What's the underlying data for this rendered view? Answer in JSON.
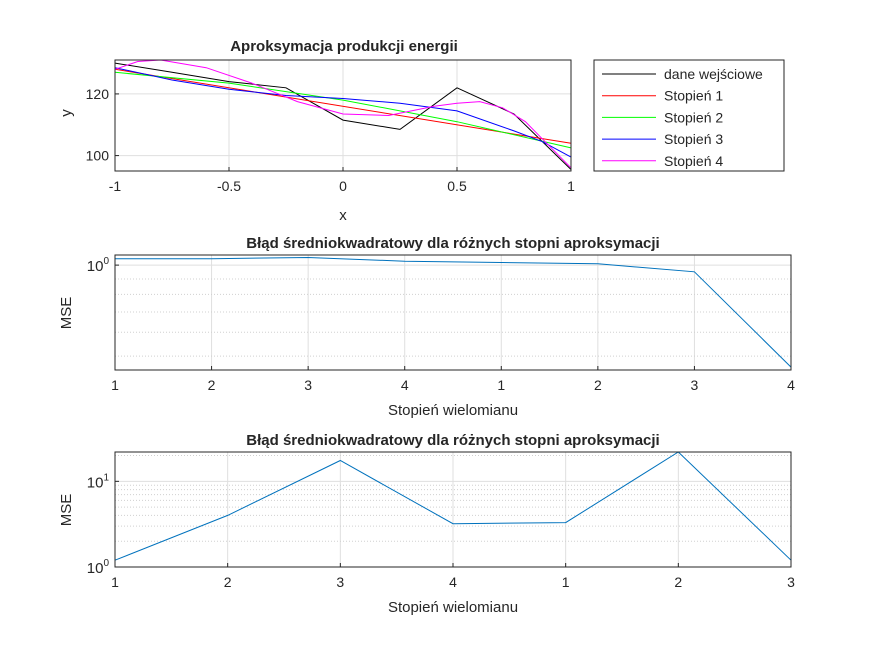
{
  "figure": {
    "background": "#ffffff"
  },
  "chart_data": [
    {
      "type": "line",
      "title": "Aproksymacja produkcji energii",
      "xlabel": "x",
      "ylabel": "y",
      "xlim": [
        -1,
        1
      ],
      "ylim": [
        95,
        131
      ],
      "xticks": [
        "-1",
        "-0.5",
        "0",
        "0.5",
        "1"
      ],
      "xtick_values": [
        -1,
        -0.5,
        0,
        0.5,
        1
      ],
      "yticks": [
        "100",
        "120"
      ],
      "ytick_values": [
        100,
        120
      ],
      "grid": true,
      "legend_position": "outside-right",
      "series": [
        {
          "name": "dane wejściowe",
          "color": "#000000",
          "x": [
            -1,
            -0.75,
            -0.5,
            -0.25,
            0,
            0.25,
            0.5,
            0.75,
            1
          ],
          "y": [
            130,
            127,
            124,
            122,
            111.5,
            108.5,
            122,
            113.5,
            95.5
          ]
        },
        {
          "name": "Stopień 1",
          "color": "#ff0000",
          "x": [
            -1,
            1
          ],
          "y": [
            128,
            104
          ]
        },
        {
          "name": "Stopień 2",
          "color": "#00ff00",
          "x": [
            -1,
            -0.5,
            0,
            0.5,
            1
          ],
          "y": [
            127,
            123.5,
            118,
            111,
            102.5
          ]
        },
        {
          "name": "Stopień 3",
          "color": "#0000ff",
          "x": [
            -1,
            -0.75,
            -0.5,
            -0.25,
            0,
            0.25,
            0.5,
            0.75,
            0.875,
            1
          ],
          "y": [
            128.5,
            124.5,
            121.5,
            119.5,
            118.5,
            117,
            114.5,
            108,
            104.5,
            99.5
          ]
        },
        {
          "name": "Stopień 4",
          "color": "#ff00ff",
          "x": [
            -1,
            -0.9,
            -0.8,
            -0.6,
            -0.4,
            -0.2,
            0,
            0.2,
            0.4,
            0.5,
            0.6,
            0.7,
            0.8,
            0.9,
            1
          ],
          "y": [
            128,
            130.5,
            131,
            128.5,
            123.5,
            117.5,
            113.5,
            113,
            116,
            117,
            117.5,
            115.5,
            111,
            103.5,
            96
          ]
        }
      ]
    },
    {
      "type": "line",
      "title": "Błąd średniokwadratowy dla różnych stopni aproksymacji",
      "xlabel": "Stopień wielomianu",
      "ylabel": "MSE",
      "y_scale": "log",
      "xticks": [
        "1",
        "2",
        "3",
        "4",
        "1",
        "2",
        "3",
        "4"
      ],
      "yticks": [
        "10^0"
      ],
      "ylim": [
        0.45,
        1.08
      ],
      "grid": true,
      "series": [
        {
          "color": "#0072bd",
          "y": [
            1.05,
            1.05,
            1.06,
            1.03,
            1.02,
            1.01,
            0.95,
            0.46
          ]
        }
      ]
    },
    {
      "type": "line",
      "title": "Błąd średniokwadratowy dla różnych stopni aproksymacji",
      "xlabel": "Stopień wielomianu",
      "ylabel": "MSE",
      "y_scale": "log",
      "xticks": [
        "1",
        "2",
        "3",
        "4",
        "1",
        "2",
        "3"
      ],
      "yticks": [
        "10^0",
        "10^1"
      ],
      "ylim": [
        1,
        22
      ],
      "grid": true,
      "series": [
        {
          "color": "#0072bd",
          "y": [
            1.2,
            4,
            17.5,
            3.2,
            3.3,
            22,
            1.2
          ]
        }
      ]
    }
  ]
}
